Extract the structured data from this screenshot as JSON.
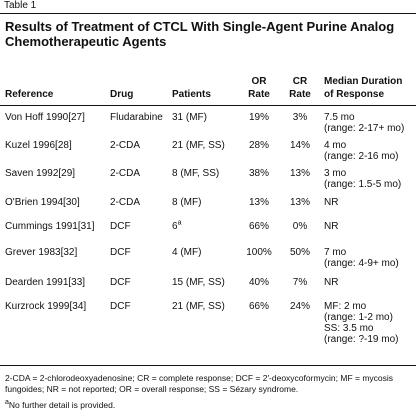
{
  "table_label": "Table 1",
  "title": "Results of Treatment of CTCL With Single-Agent Purine Analog Chemotherapeutic Agents",
  "headers": {
    "reference": "Reference",
    "drug": "Drug",
    "patients": "Patients",
    "or_rate_1": "OR",
    "or_rate_2": "Rate",
    "cr_rate_1": "CR",
    "cr_rate_2": "Rate",
    "median_1": "Median Duration",
    "median_2": "of Response"
  },
  "rows": [
    {
      "reference": "Von Hoff 1990[27]",
      "drug": "Fludarabine",
      "patients": "31 (MF)",
      "patients_sup": "",
      "or": "19%",
      "cr": "3%",
      "median": [
        "7.5 mo",
        "(range: 2-17+ mo)"
      ]
    },
    {
      "reference": "Kuzel 1996[28]",
      "drug": "2-CDA",
      "patients": "21 (MF, SS)",
      "patients_sup": "",
      "or": "28%",
      "cr": "14%",
      "median": [
        "4 mo",
        "(range: 2-16 mo)"
      ]
    },
    {
      "reference": "Saven 1992[29]",
      "drug": "2-CDA",
      "patients": "8 (MF, SS)",
      "patients_sup": "",
      "or": "38%",
      "cr": "13%",
      "median": [
        "3 mo",
        "(range: 1.5-5 mo)"
      ]
    },
    {
      "reference": "O'Brien 1994[30]",
      "drug": "2-CDA",
      "patients": "8 (MF)",
      "patients_sup": "",
      "or": "13%",
      "cr": "13%",
      "median": [
        "NR"
      ]
    },
    {
      "reference": "Cummings 1991[31]",
      "drug": "DCF",
      "patients": "6",
      "patients_sup": "a",
      "or": "66%",
      "cr": "0%",
      "median": [
        "NR"
      ]
    },
    {
      "reference": "Grever 1983[32]",
      "drug": "DCF",
      "patients": "4 (MF)",
      "patients_sup": "",
      "or": "100%",
      "cr": "50%",
      "median": [
        "7 mo",
        "(range: 4-9+ mo)"
      ]
    },
    {
      "reference": "Dearden 1991[33]",
      "drug": "DCF",
      "patients": "15 (MF, SS)",
      "patients_sup": "",
      "or": "40%",
      "cr": "7%",
      "median": [
        "NR"
      ]
    },
    {
      "reference": "Kurzrock 1999[34]",
      "drug": "DCF",
      "patients": "21 (MF, SS)",
      "patients_sup": "",
      "or": "66%",
      "cr": "24%",
      "median": [
        "MF: 2 mo",
        "(range: 1-2 mo)",
        "SS: 3.5 mo",
        "(range: ?-19 mo)"
      ]
    }
  ],
  "footnote_abbrev": "2-CDA = 2-chlorodeoxyadenosine; CR = complete response; DCF = 2′-deoxycoformycin; MF = mycosis fungoides; NR = not reported; OR = overall response; SS = Sézary syndrome.",
  "footnote_a_marker": "a",
  "footnote_a": "No further detail is provided."
}
